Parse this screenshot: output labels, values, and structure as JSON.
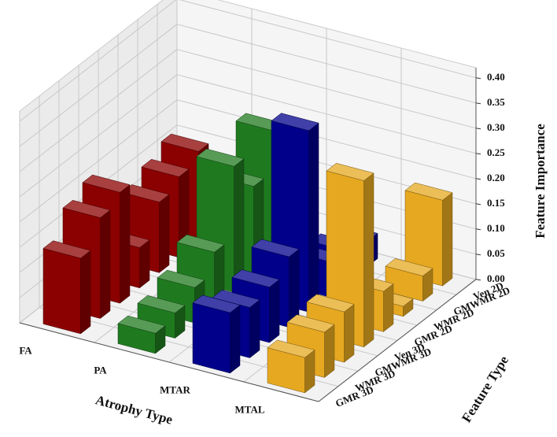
{
  "chart_data": {
    "type": "bar3d",
    "x_label": "Atrophy Type",
    "y_label": "Feature Type",
    "z_label": "Feature Importance",
    "categories": [
      "FA",
      "PA",
      "MTAR",
      "MTAL"
    ],
    "feature_types": [
      "GMR 3D",
      "WMR 3D",
      "GMWMR 3D",
      "Ven 3D",
      "GMR 2D",
      "WMR 2D",
      "GMWMR 2D",
      "Ven 2D"
    ],
    "colors": [
      "#8b0000",
      "#1f7a1f",
      "#00008b",
      "#e6a820"
    ],
    "values": [
      [
        0.15,
        0.2,
        0.22,
        0.08,
        0.14,
        0.16,
        0.18,
        0.05
      ],
      [
        0.04,
        0.05,
        0.07,
        0.11,
        0.25,
        0.18,
        0.26,
        0.0
      ],
      [
        0.12,
        0.1,
        0.11,
        0.14,
        0.36,
        0.07,
        0.06,
        0.05
      ],
      [
        0.07,
        0.09,
        0.1,
        0.33,
        0.08,
        0.02,
        0.05,
        0.17
      ]
    ],
    "zlim": [
      0,
      0.42
    ],
    "zticks": [
      {
        "value": 0,
        "label": "0.00"
      },
      {
        "value": 0.05,
        "label": "0.05"
      },
      {
        "value": 0.1,
        "label": "0.10"
      },
      {
        "value": 0.15,
        "label": "0.15"
      },
      {
        "value": 0.2,
        "label": "0.20"
      },
      {
        "value": 0.25,
        "label": "0.25"
      },
      {
        "value": 0.3,
        "label": "0.30"
      },
      {
        "value": 0.35,
        "label": "0.35"
      },
      {
        "value": 0.4,
        "label": "0.40"
      }
    ],
    "grid": true
  }
}
